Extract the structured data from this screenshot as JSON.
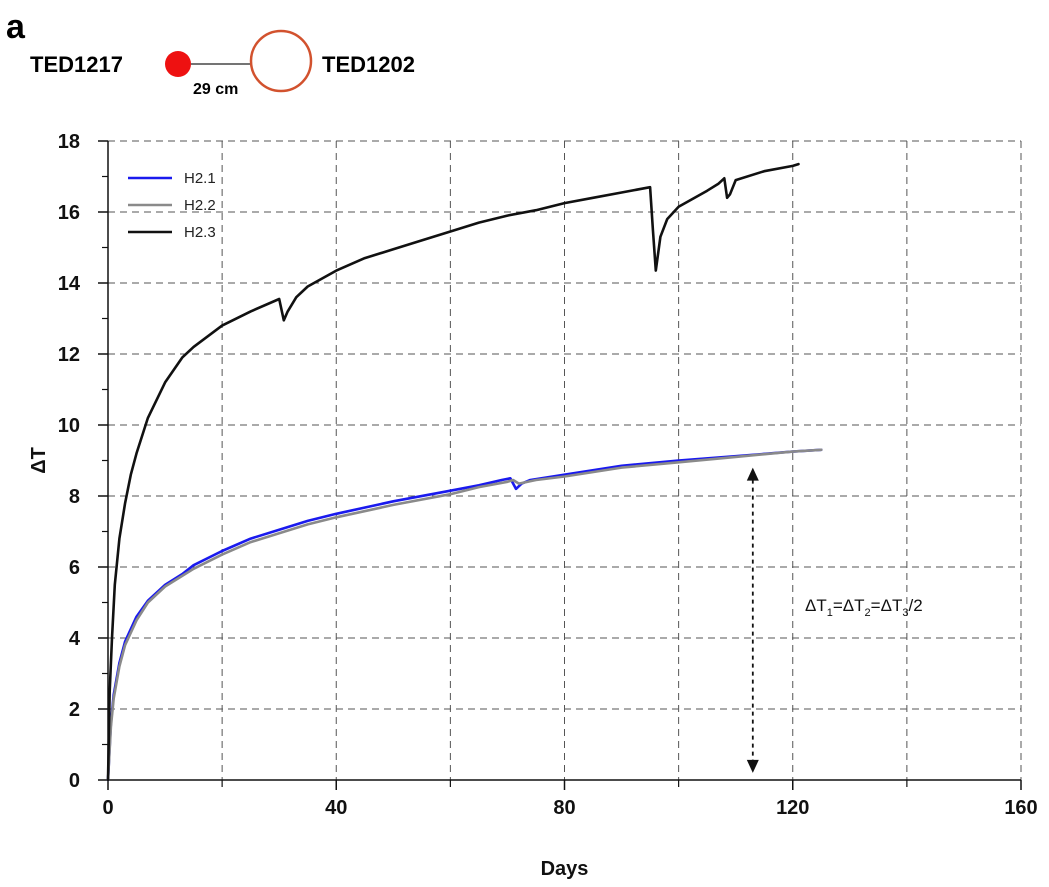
{
  "figure": {
    "panel_label": "a",
    "legend": {
      "placement": "top-left"
    },
    "layout_icon": {
      "sensor_left": {
        "label": "TED1217",
        "color": "#ee1111",
        "style": "filled"
      },
      "sensor_right": {
        "label": "TED1202",
        "color": "#d2522e",
        "style": "hollow"
      },
      "distance_label": "29 cm"
    },
    "annotation": {
      "parts": [
        "ΔT",
        "1",
        "=ΔT",
        "2",
        "=ΔT",
        "3",
        "/2"
      ]
    }
  },
  "chart_data": {
    "type": "line",
    "title": "",
    "xlabel": "Days",
    "ylabel": "ΔT",
    "xlim": [
      0,
      160
    ],
    "ylim": [
      0,
      18
    ],
    "grid": true,
    "x_ticks": [
      0,
      40,
      80,
      120,
      160
    ],
    "x_minor_ticks": [
      20,
      60,
      100,
      140
    ],
    "y_ticks": [
      0,
      2,
      4,
      6,
      8,
      10,
      12,
      14,
      16,
      18
    ],
    "series": [
      {
        "name": "H2.1",
        "color": "#1a1aee",
        "points": [
          [
            0,
            0
          ],
          [
            0.5,
            1.6
          ],
          [
            1,
            2.4
          ],
          [
            2,
            3.3
          ],
          [
            3,
            3.9
          ],
          [
            5,
            4.6
          ],
          [
            7,
            5.05
          ],
          [
            10,
            5.5
          ],
          [
            13,
            5.8
          ],
          [
            15,
            6.05
          ],
          [
            20,
            6.45
          ],
          [
            25,
            6.8
          ],
          [
            30,
            7.05
          ],
          [
            35,
            7.3
          ],
          [
            40,
            7.5
          ],
          [
            50,
            7.85
          ],
          [
            60,
            8.15
          ],
          [
            65,
            8.3
          ],
          [
            69,
            8.45
          ],
          [
            70.5,
            8.5
          ],
          [
            71.5,
            8.2
          ],
          [
            72.5,
            8.35
          ],
          [
            74,
            8.45
          ],
          [
            80,
            8.6
          ],
          [
            90,
            8.85
          ],
          [
            100,
            9.0
          ],
          [
            110,
            9.12
          ],
          [
            120,
            9.25
          ],
          [
            125,
            9.3
          ]
        ]
      },
      {
        "name": "H2.2",
        "color": "#8a8a8a",
        "points": [
          [
            0,
            0
          ],
          [
            0.5,
            1.5
          ],
          [
            1,
            2.3
          ],
          [
            2,
            3.2
          ],
          [
            3,
            3.8
          ],
          [
            5,
            4.5
          ],
          [
            7,
            5.0
          ],
          [
            10,
            5.45
          ],
          [
            13,
            5.75
          ],
          [
            15,
            5.95
          ],
          [
            20,
            6.35
          ],
          [
            25,
            6.7
          ],
          [
            30,
            6.95
          ],
          [
            35,
            7.2
          ],
          [
            40,
            7.4
          ],
          [
            50,
            7.75
          ],
          [
            60,
            8.05
          ],
          [
            65,
            8.25
          ],
          [
            70,
            8.4
          ],
          [
            71,
            8.45
          ],
          [
            72,
            8.35
          ],
          [
            75,
            8.45
          ],
          [
            80,
            8.55
          ],
          [
            90,
            8.8
          ],
          [
            100,
            8.95
          ],
          [
            110,
            9.1
          ],
          [
            120,
            9.25
          ],
          [
            125,
            9.3
          ]
        ]
      },
      {
        "name": "H2.3",
        "color": "#111111",
        "points": [
          [
            0,
            0
          ],
          [
            0.3,
            2.5
          ],
          [
            0.7,
            4
          ],
          [
            1.2,
            5.5
          ],
          [
            2,
            6.8
          ],
          [
            3,
            7.8
          ],
          [
            4,
            8.6
          ],
          [
            5,
            9.2
          ],
          [
            7,
            10.2
          ],
          [
            10,
            11.2
          ],
          [
            13,
            11.9
          ],
          [
            15,
            12.2
          ],
          [
            20,
            12.8
          ],
          [
            25,
            13.2
          ],
          [
            30,
            13.55
          ],
          [
            30.8,
            12.95
          ],
          [
            31.5,
            13.2
          ],
          [
            33,
            13.6
          ],
          [
            35,
            13.9
          ],
          [
            40,
            14.35
          ],
          [
            45,
            14.7
          ],
          [
            50,
            14.95
          ],
          [
            55,
            15.2
          ],
          [
            60,
            15.45
          ],
          [
            65,
            15.7
          ],
          [
            70,
            15.9
          ],
          [
            75,
            16.05
          ],
          [
            80,
            16.25
          ],
          [
            85,
            16.4
          ],
          [
            90,
            16.55
          ],
          [
            95,
            16.7
          ],
          [
            95.5,
            15.5
          ],
          [
            96,
            14.35
          ],
          [
            96.8,
            15.3
          ],
          [
            98,
            15.8
          ],
          [
            100,
            16.15
          ],
          [
            105,
            16.6
          ],
          [
            107,
            16.8
          ],
          [
            108,
            16.95
          ],
          [
            108.5,
            16.4
          ],
          [
            109,
            16.5
          ],
          [
            110,
            16.9
          ],
          [
            115,
            17.15
          ],
          [
            120,
            17.3
          ],
          [
            121,
            17.35
          ]
        ]
      }
    ],
    "annotations": [
      {
        "text": "ΔT1=ΔT2=ΔT3/2",
        "x": 122,
        "y": 5
      },
      {
        "type": "double-arrow",
        "x": 113,
        "y_from": 0.2,
        "y_to": 8.8
      }
    ]
  }
}
